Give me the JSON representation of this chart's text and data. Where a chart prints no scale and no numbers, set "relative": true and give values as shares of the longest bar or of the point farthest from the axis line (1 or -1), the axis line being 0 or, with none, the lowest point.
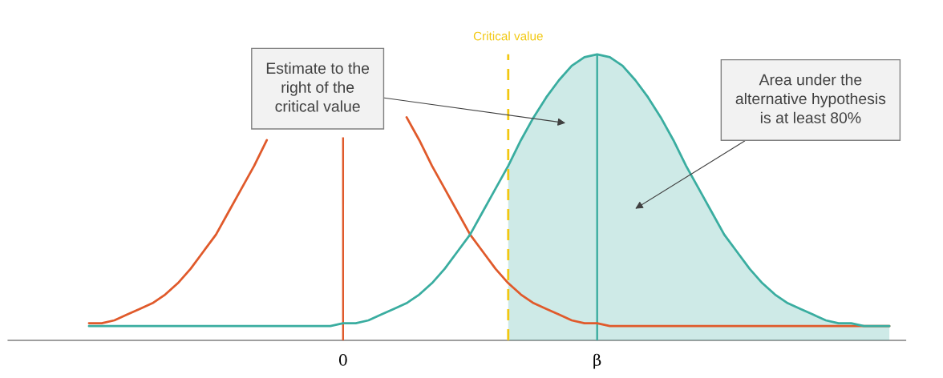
{
  "chart_data": {
    "type": "line",
    "relative": true,
    "categories": [
      null,
      null,
      null,
      null,
      null,
      null,
      null,
      null,
      null,
      null,
      null,
      null,
      null,
      null,
      null,
      null,
      null,
      null,
      null,
      null,
      "0",
      null,
      null,
      null,
      null,
      null,
      null,
      null,
      null,
      null,
      null,
      null,
      null,
      null,
      null,
      null,
      null,
      null,
      null,
      null,
      "β",
      null,
      null,
      null,
      null,
      null,
      null,
      null,
      null,
      null,
      null,
      null,
      null,
      null,
      null,
      null,
      null,
      null,
      null,
      null,
      null,
      null,
      null,
      null
    ],
    "grid": false,
    "series": [
      {
        "type": "area",
        "color": "#3aada0",
        "values": [
          null,
          null,
          null,
          null,
          null,
          null,
          null,
          null,
          null,
          null,
          null,
          null,
          null,
          null,
          null,
          null,
          null,
          null,
          null,
          null,
          null,
          null,
          null,
          null,
          null,
          null,
          null,
          null,
          null,
          null,
          null,
          null,
          null,
          0.61,
          0.7,
          0.78,
          0.85,
          0.91,
          0.96,
          0.99,
          1.0,
          0.99,
          0.96,
          0.91,
          0.85,
          0.78,
          0.7,
          0.61,
          0.53,
          0.45,
          0.37,
          0.31,
          0.25,
          0.2,
          0.16,
          0.13,
          0.11,
          0.09,
          0.07,
          0.06,
          0.06,
          0.05,
          0.05,
          0.05
        ]
      },
      {
        "color": "#e05a2b",
        "values": [
          0.06,
          0.06,
          0.07,
          0.09,
          0.11,
          0.13,
          0.16,
          0.2,
          0.25,
          0.31,
          0.37,
          0.45,
          0.53,
          0.61,
          0.7,
          null,
          null,
          null,
          null,
          null,
          null,
          null,
          null,
          null,
          null,
          0.78,
          0.7,
          0.61,
          0.53,
          0.45,
          0.37,
          0.31,
          0.25,
          0.2,
          0.16,
          0.13,
          0.11,
          0.09,
          0.07,
          0.06,
          0.06,
          0.05,
          0.05,
          0.05,
          0.05,
          0.05,
          0.05,
          0.05,
          0.05,
          0.05,
          0.05,
          0.05,
          0.05,
          0.05,
          0.05,
          0.05,
          0.05,
          0.05,
          0.05,
          0.05,
          0.05,
          0.05,
          0.05,
          0.05
        ]
      },
      {
        "color": "#3aada0",
        "values": [
          0.05,
          0.05,
          0.05,
          0.05,
          0.05,
          0.05,
          0.05,
          0.05,
          0.05,
          0.05,
          0.05,
          0.05,
          0.05,
          0.05,
          0.05,
          0.05,
          0.05,
          0.05,
          0.05,
          0.05,
          0.06,
          0.06,
          0.07,
          0.09,
          0.11,
          0.13,
          0.16,
          0.2,
          0.25,
          0.31,
          0.37,
          0.45,
          0.53,
          0.61,
          0.7,
          0.78,
          0.85,
          0.91,
          0.96,
          0.99,
          1.0,
          0.99,
          0.96,
          0.91,
          0.85,
          0.78,
          0.7,
          0.61,
          0.53,
          0.45,
          0.37,
          0.31,
          0.25,
          0.2,
          0.16,
          0.13,
          0.11,
          0.09,
          0.07,
          0.06,
          0.06,
          0.05,
          0.05,
          0.05
        ]
      },
      {
        "type": "bar",
        "color": "#e05a2b",
        "values": [
          null,
          null,
          null,
          null,
          null,
          null,
          null,
          null,
          null,
          null,
          null,
          null,
          null,
          null,
          null,
          null,
          null,
          null,
          null,
          null,
          0.71,
          null,
          null,
          null,
          null,
          null,
          null,
          null,
          null,
          null,
          null,
          null,
          null,
          null,
          null,
          null,
          null,
          null,
          null,
          null,
          null,
          null,
          null,
          null,
          null,
          null,
          null,
          null,
          null,
          null,
          null,
          null,
          null,
          null,
          null,
          null,
          null,
          null,
          null,
          null,
          null,
          null,
          null,
          null
        ]
      },
      {
        "type": "bar",
        "color": "#3aada0",
        "values": [
          null,
          null,
          null,
          null,
          null,
          null,
          null,
          null,
          null,
          null,
          null,
          null,
          null,
          null,
          null,
          null,
          null,
          null,
          null,
          null,
          null,
          null,
          null,
          null,
          null,
          null,
          null,
          null,
          null,
          null,
          null,
          null,
          null,
          null,
          null,
          null,
          null,
          null,
          null,
          null,
          1.0,
          null,
          null,
          null,
          null,
          null,
          null,
          null,
          null,
          null,
          null,
          null,
          null,
          null,
          null,
          null,
          null,
          null,
          null,
          null,
          null,
          null,
          null,
          null
        ]
      }
    ],
    "annotations": [
      "Critical value",
      "Estimate to the\nright of the\ncritical value",
      "Area under the\nalternative hypothesis\nis at least 80%"
    ]
  }
}
